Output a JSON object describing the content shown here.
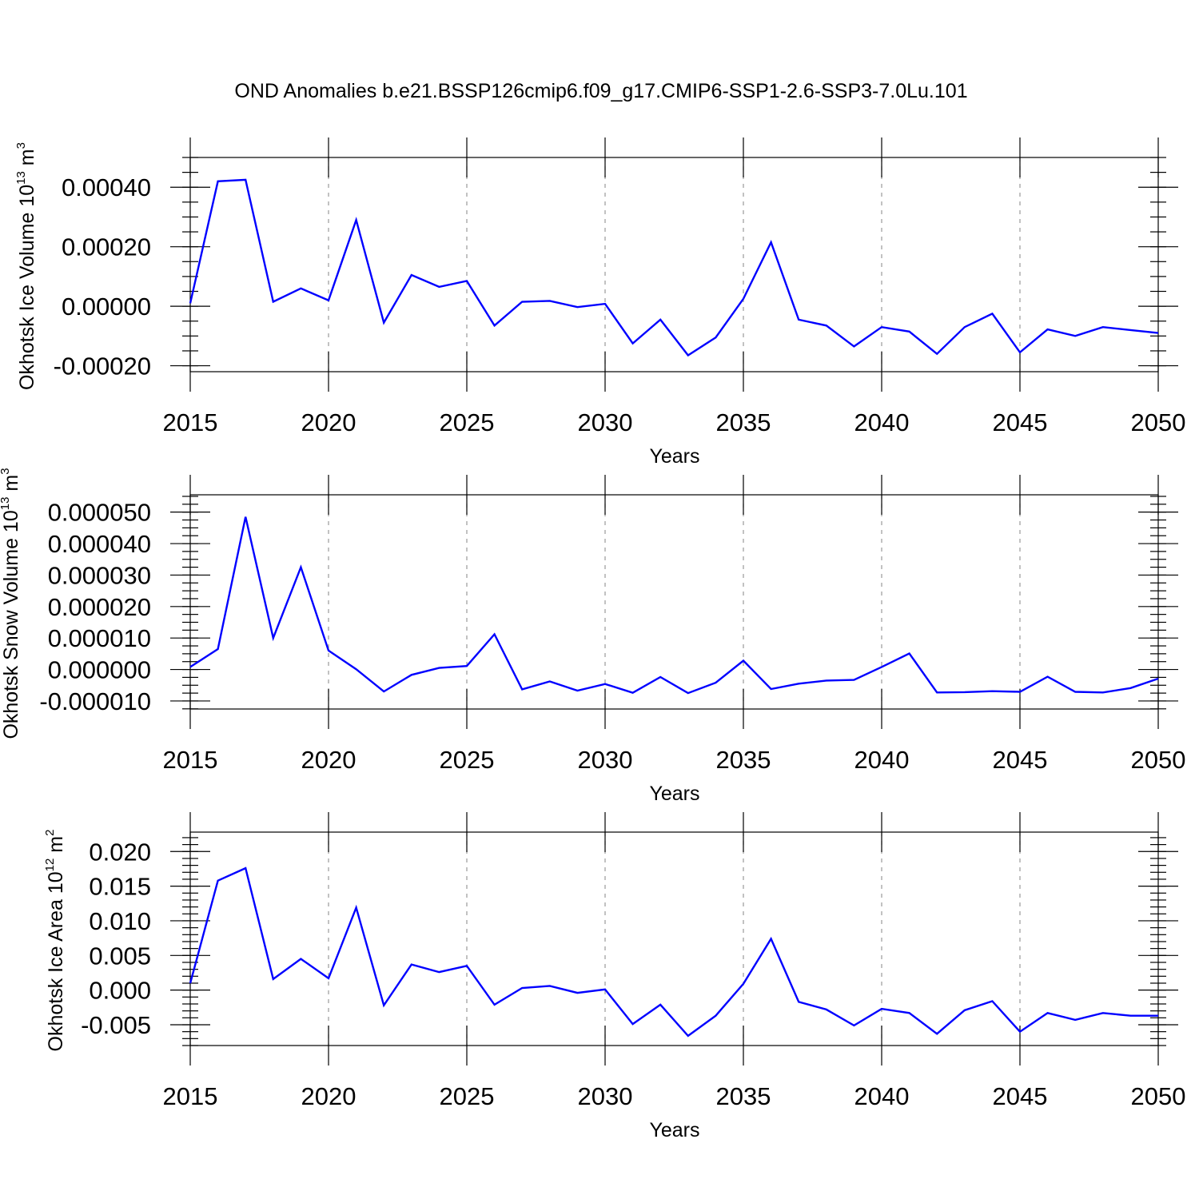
{
  "title": "OND Anomalies b.e21.BSSP126cmip6.f09_g17.CMIP6-SSP1-2.6-SSP3-7.0Lu.101",
  "colors": {
    "line": "#0000ff",
    "grid": "#9a9a9a",
    "frame": "#000000"
  },
  "chart_data": [
    {
      "type": "line",
      "ylabel_main": "Okhotsk Ice Volume 10",
      "ylabel_sup": "13",
      "ylabel_unit": " m",
      "ylabel_unit_sup": "3",
      "xlabel": "Years",
      "xlim": [
        2015,
        2050
      ],
      "ylim": [
        -0.00022,
        0.0005
      ],
      "xticks": [
        2015,
        2020,
        2025,
        2030,
        2035,
        2040,
        2045,
        2050
      ],
      "xtick_labels": [
        "2015",
        "2020",
        "2025",
        "2030",
        "2035",
        "2040",
        "2045",
        "2050"
      ],
      "yticks": [
        -0.0002,
        0.0,
        0.0002,
        0.0004
      ],
      "ytick_labels": [
        "-0.00020",
        "0.00000",
        "0.00020",
        "0.00040"
      ],
      "grid": "vertical dashed at major x ticks",
      "series": [
        {
          "x": [
            2015,
            2016,
            2017,
            2018,
            2019,
            2020,
            2021,
            2022,
            2023,
            2024,
            2025,
            2026,
            2027,
            2028,
            2029,
            2030,
            2031,
            2032,
            2033,
            2034,
            2035,
            2036,
            2037,
            2038,
            2039,
            2040,
            2041,
            2042,
            2043,
            2044,
            2045,
            2046,
            2047,
            2048,
            2049,
            2050
          ],
          "values": [
            1e-05,
            0.00042,
            0.000425,
            1.5e-05,
            6e-05,
            2e-05,
            0.00029,
            -5.5e-05,
            0.000105,
            6.5e-05,
            8.5e-05,
            -6.5e-05,
            1.5e-05,
            1.8e-05,
            -3e-06,
            8e-06,
            -0.000125,
            -4.5e-05,
            -0.000165,
            -0.000105,
            2.5e-05,
            0.000215,
            -4.5e-05,
            -6.5e-05,
            -0.000135,
            -7e-05,
            -8.5e-05,
            -0.00016,
            -7e-05,
            -2.5e-05,
            -0.000155,
            -7.8e-05,
            -0.0001,
            -7e-05,
            -8e-05,
            -9e-05
          ]
        }
      ]
    },
    {
      "type": "line",
      "ylabel_main": "Okhotsk Snow Volume 10",
      "ylabel_sup": "13",
      "ylabel_unit": " m",
      "ylabel_unit_sup": "3",
      "xlabel": "Years",
      "xlim": [
        2015,
        2050
      ],
      "ylim": [
        -1.255e-05,
        5.55e-05
      ],
      "xticks": [
        2015,
        2020,
        2025,
        2030,
        2035,
        2040,
        2045,
        2050
      ],
      "xtick_labels": [
        "2015",
        "2020",
        "2025",
        "2030",
        "2035",
        "2040",
        "2045",
        "2050"
      ],
      "yticks": [
        -1e-05,
        0.0,
        1e-05,
        2e-05,
        3e-05,
        4e-05,
        5e-05
      ],
      "ytick_labels": [
        "-0.000010",
        "0.000000",
        "0.000010",
        "0.000020",
        "0.000030",
        "0.000040",
        "0.000050"
      ],
      "grid": "vertical dashed at major x ticks",
      "series": [
        {
          "x": [
            2015,
            2016,
            2017,
            2018,
            2019,
            2020,
            2021,
            2022,
            2023,
            2024,
            2025,
            2026,
            2027,
            2028,
            2029,
            2030,
            2031,
            2032,
            2033,
            2034,
            2035,
            2036,
            2037,
            2038,
            2039,
            2040,
            2041,
            2042,
            2043,
            2044,
            2045,
            2046,
            2047,
            2048,
            2049,
            2050
          ],
          "values": [
            8e-07,
            6.5e-06,
            4.85e-05,
            1e-05,
            3.25e-05,
            6e-06,
            1e-07,
            -7e-06,
            -1.7e-06,
            5e-07,
            1.1e-06,
            1.12e-05,
            -6.3e-06,
            -3.8e-06,
            -6.7e-06,
            -4.6e-06,
            -7.4e-06,
            -2.4e-06,
            -7.5e-06,
            -4.2e-06,
            2.8e-06,
            -6.2e-06,
            -4.5e-06,
            -3.5e-06,
            -3.3e-06,
            8e-07,
            5.1e-06,
            -7.3e-06,
            -7.2e-06,
            -6.9e-06,
            -7.1e-06,
            -2.3e-06,
            -7.1e-06,
            -7.3e-06,
            -5.9e-06,
            -2.9e-06
          ]
        }
      ]
    },
    {
      "type": "line",
      "ylabel_main": "Okhotsk Ice Area 10",
      "ylabel_sup": "12",
      "ylabel_unit": " m",
      "ylabel_unit_sup": "2",
      "xlabel": "Years",
      "xlim": [
        2015,
        2050
      ],
      "ylim": [
        -0.008,
        0.0228
      ],
      "xticks": [
        2015,
        2020,
        2025,
        2030,
        2035,
        2040,
        2045,
        2050
      ],
      "xtick_labels": [
        "2015",
        "2020",
        "2025",
        "2030",
        "2035",
        "2040",
        "2045",
        "2050"
      ],
      "yticks": [
        -0.005,
        0.0,
        0.005,
        0.01,
        0.015,
        0.02
      ],
      "ytick_labels": [
        "-0.005",
        "0.000",
        "0.005",
        "0.010",
        "0.015",
        "0.020"
      ],
      "grid": "vertical dashed at major x ticks",
      "series": [
        {
          "x": [
            2015,
            2016,
            2017,
            2018,
            2019,
            2020,
            2021,
            2022,
            2023,
            2024,
            2025,
            2026,
            2027,
            2028,
            2029,
            2030,
            2031,
            2032,
            2033,
            2034,
            2035,
            2036,
            2037,
            2038,
            2039,
            2040,
            2041,
            2042,
            2043,
            2044,
            2045,
            2046,
            2047,
            2048,
            2049,
            2050
          ],
          "values": [
            0.001,
            0.0158,
            0.0176,
            0.0016,
            0.0045,
            0.0017,
            0.0119,
            -0.0022,
            0.0037,
            0.0026,
            0.0035,
            -0.0021,
            0.0003,
            0.0006,
            -0.0004,
            0.0001,
            -0.0049,
            -0.0021,
            -0.0066,
            -0.0037,
            0.0009,
            0.0074,
            -0.0017,
            -0.0028,
            -0.0051,
            -0.0027,
            -0.0033,
            -0.0063,
            -0.0029,
            -0.0016,
            -0.006,
            -0.0033,
            -0.0043,
            -0.0033,
            -0.0037,
            -0.0037
          ]
        }
      ]
    }
  ]
}
